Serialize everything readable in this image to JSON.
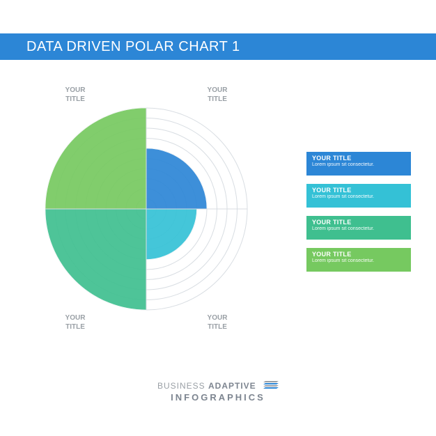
{
  "header": {
    "title": "DATA DRIVEN POLAR CHART 1",
    "background_color": "#2c86d6",
    "title_color": "#ffffff",
    "title_fontsize": 20
  },
  "chart": {
    "type": "polar",
    "rings": 10,
    "grid_color": "#d8dde2",
    "grid_stroke_width": 1,
    "background_color": "#ffffff",
    "quadrants": [
      {
        "label_line1": "YOUR",
        "label_line2": "TITLE",
        "start_angle": -90,
        "end_angle": 0,
        "value": 6,
        "color": "#2c86d6",
        "opacity": 0.92
      },
      {
        "label_line1": "YOUR",
        "label_line2": "TITLE",
        "start_angle": 0,
        "end_angle": 90,
        "value": 5,
        "color": "#34c1d6",
        "opacity": 0.92
      },
      {
        "label_line1": "YOUR",
        "label_line2": "TITLE",
        "start_angle": 90,
        "end_angle": 180,
        "value": 10,
        "color": "#3fbf8f",
        "opacity": 0.92
      },
      {
        "label_line1": "YOUR",
        "label_line2": "TITLE",
        "start_angle": 180,
        "end_angle": 270,
        "value": 10,
        "color": "#76c960",
        "opacity": 0.92
      }
    ],
    "label_color": "#9aa0a6",
    "label_fontsize": 10
  },
  "legend": {
    "items": [
      {
        "title": "YOUR TITLE",
        "desc": "Lorem ipsum sit consectetur.",
        "color": "#2c86d6"
      },
      {
        "title": "YOUR TITLE",
        "desc": "Lorem ipsum sit consectetur.",
        "color": "#34c1d6"
      },
      {
        "title": "YOUR TITLE",
        "desc": "Lorem ipsum sit consectetur.",
        "color": "#3fbf8f"
      },
      {
        "title": "YOUR TITLE",
        "desc": "Lorem ipsum sit consectetur.",
        "color": "#76c960"
      }
    ],
    "title_fontsize": 9,
    "desc_fontsize": 7,
    "text_color": "#ffffff"
  },
  "footer": {
    "line1_light": "BUSINESS ",
    "line1_bold": "ADAPTIVE",
    "line2": "INFOGRAPHICS",
    "color_light": "#9aa0a6",
    "color_bold": "#7d8590",
    "icon_color1": "#2c86d6",
    "icon_color2": "#9aa0a6"
  }
}
